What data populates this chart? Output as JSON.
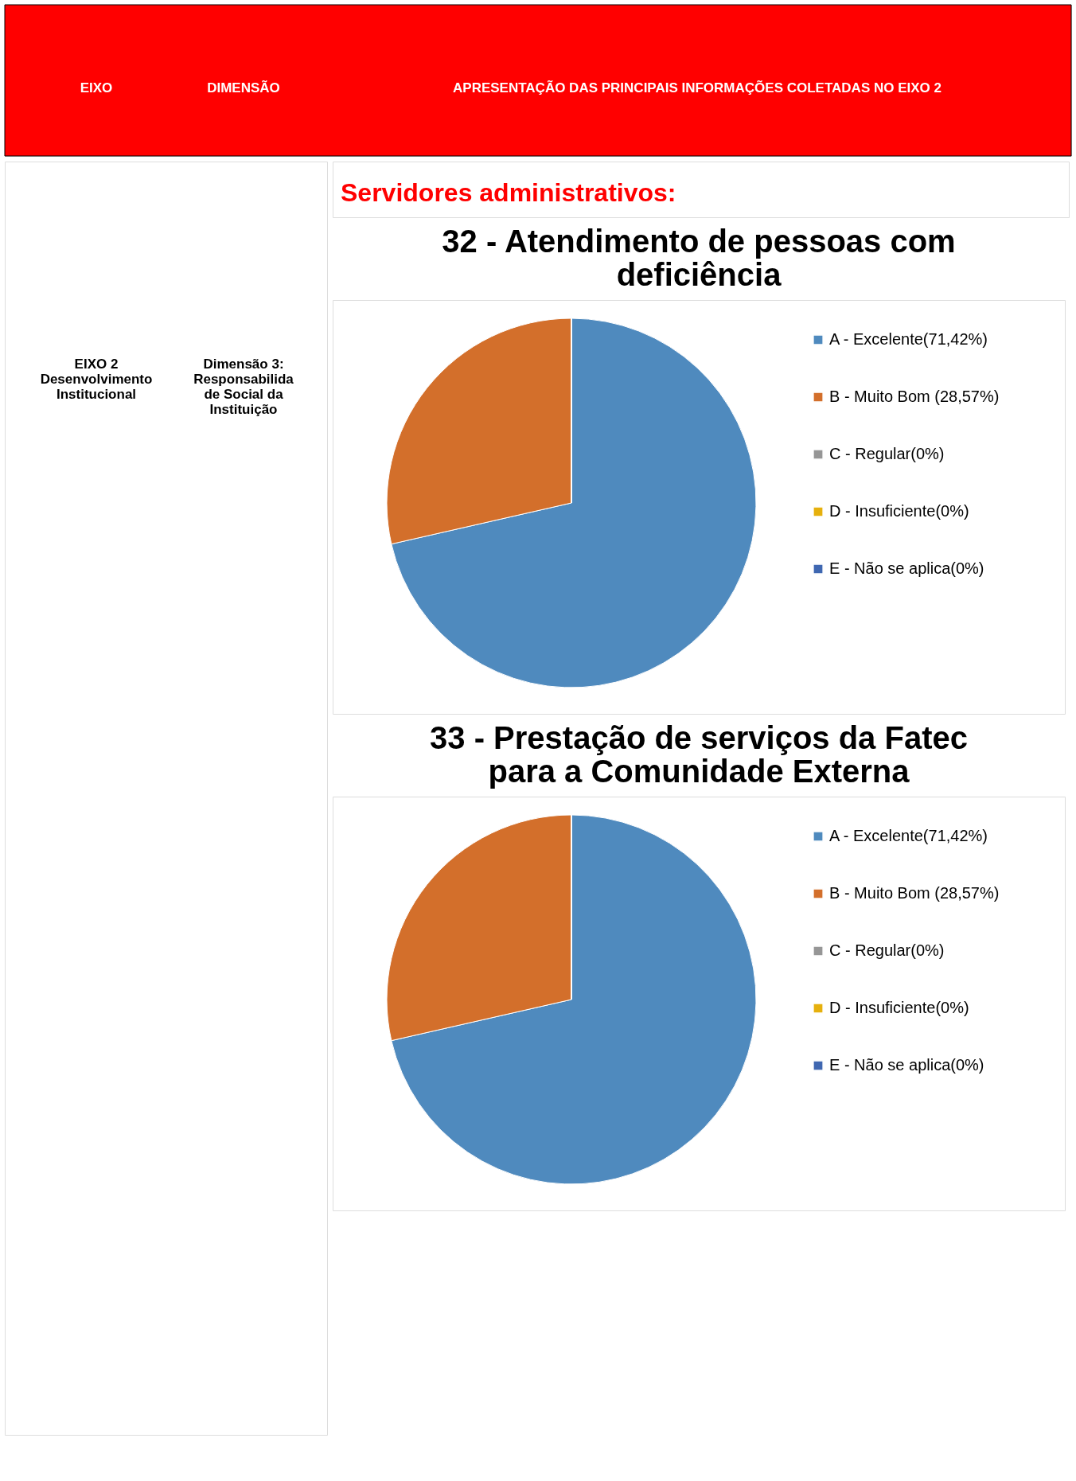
{
  "chart_data": [
    {
      "type": "other",
      "annotations": [
        "EIXO",
        "DIMENSÃO",
        "APRESENTAÇÃO DAS PRINCIPAIS INFORMAÇÕES COLETADAS NO EIXO 2",
        "EIXO 2 Desenvolvimento Institucional",
        "Dimensão 3: Responsabilidade Social da Instituição",
        "Servidores administrativos:"
      ]
    },
    {
      "type": "pie",
      "title": "32 - Atendimento de pessoas com deficiência",
      "categories": [
        "A - Excelente(71,42%)",
        "B - Muito Bom (28,57%)",
        "C - Regular(0%)",
        "D - Insuficiente(0%)",
        "E - Não se aplica(0%)"
      ],
      "values": [
        71.42,
        28.57,
        0,
        0,
        0
      ],
      "colors": [
        "#4f8abe",
        "#d36f2b",
        "#969696",
        "#e6b00d",
        "#3f67b1"
      ],
      "legend": "right"
    },
    {
      "type": "pie",
      "title": "33 - Prestação de serviços da Fatec para a Comunidade Externa",
      "categories": [
        "A - Excelente(71,42%)",
        "B - Muito Bom (28,57%)",
        "C - Regular(0%)",
        "D - Insuficiente(0%)",
        "E - Não se aplica(0%)"
      ],
      "values": [
        71.42,
        28.57,
        0,
        0,
        0
      ],
      "colors": [
        "#4f8abe",
        "#d36f2b",
        "#969696",
        "#e6b00d",
        "#3f67b1"
      ],
      "legend": "right"
    }
  ]
}
